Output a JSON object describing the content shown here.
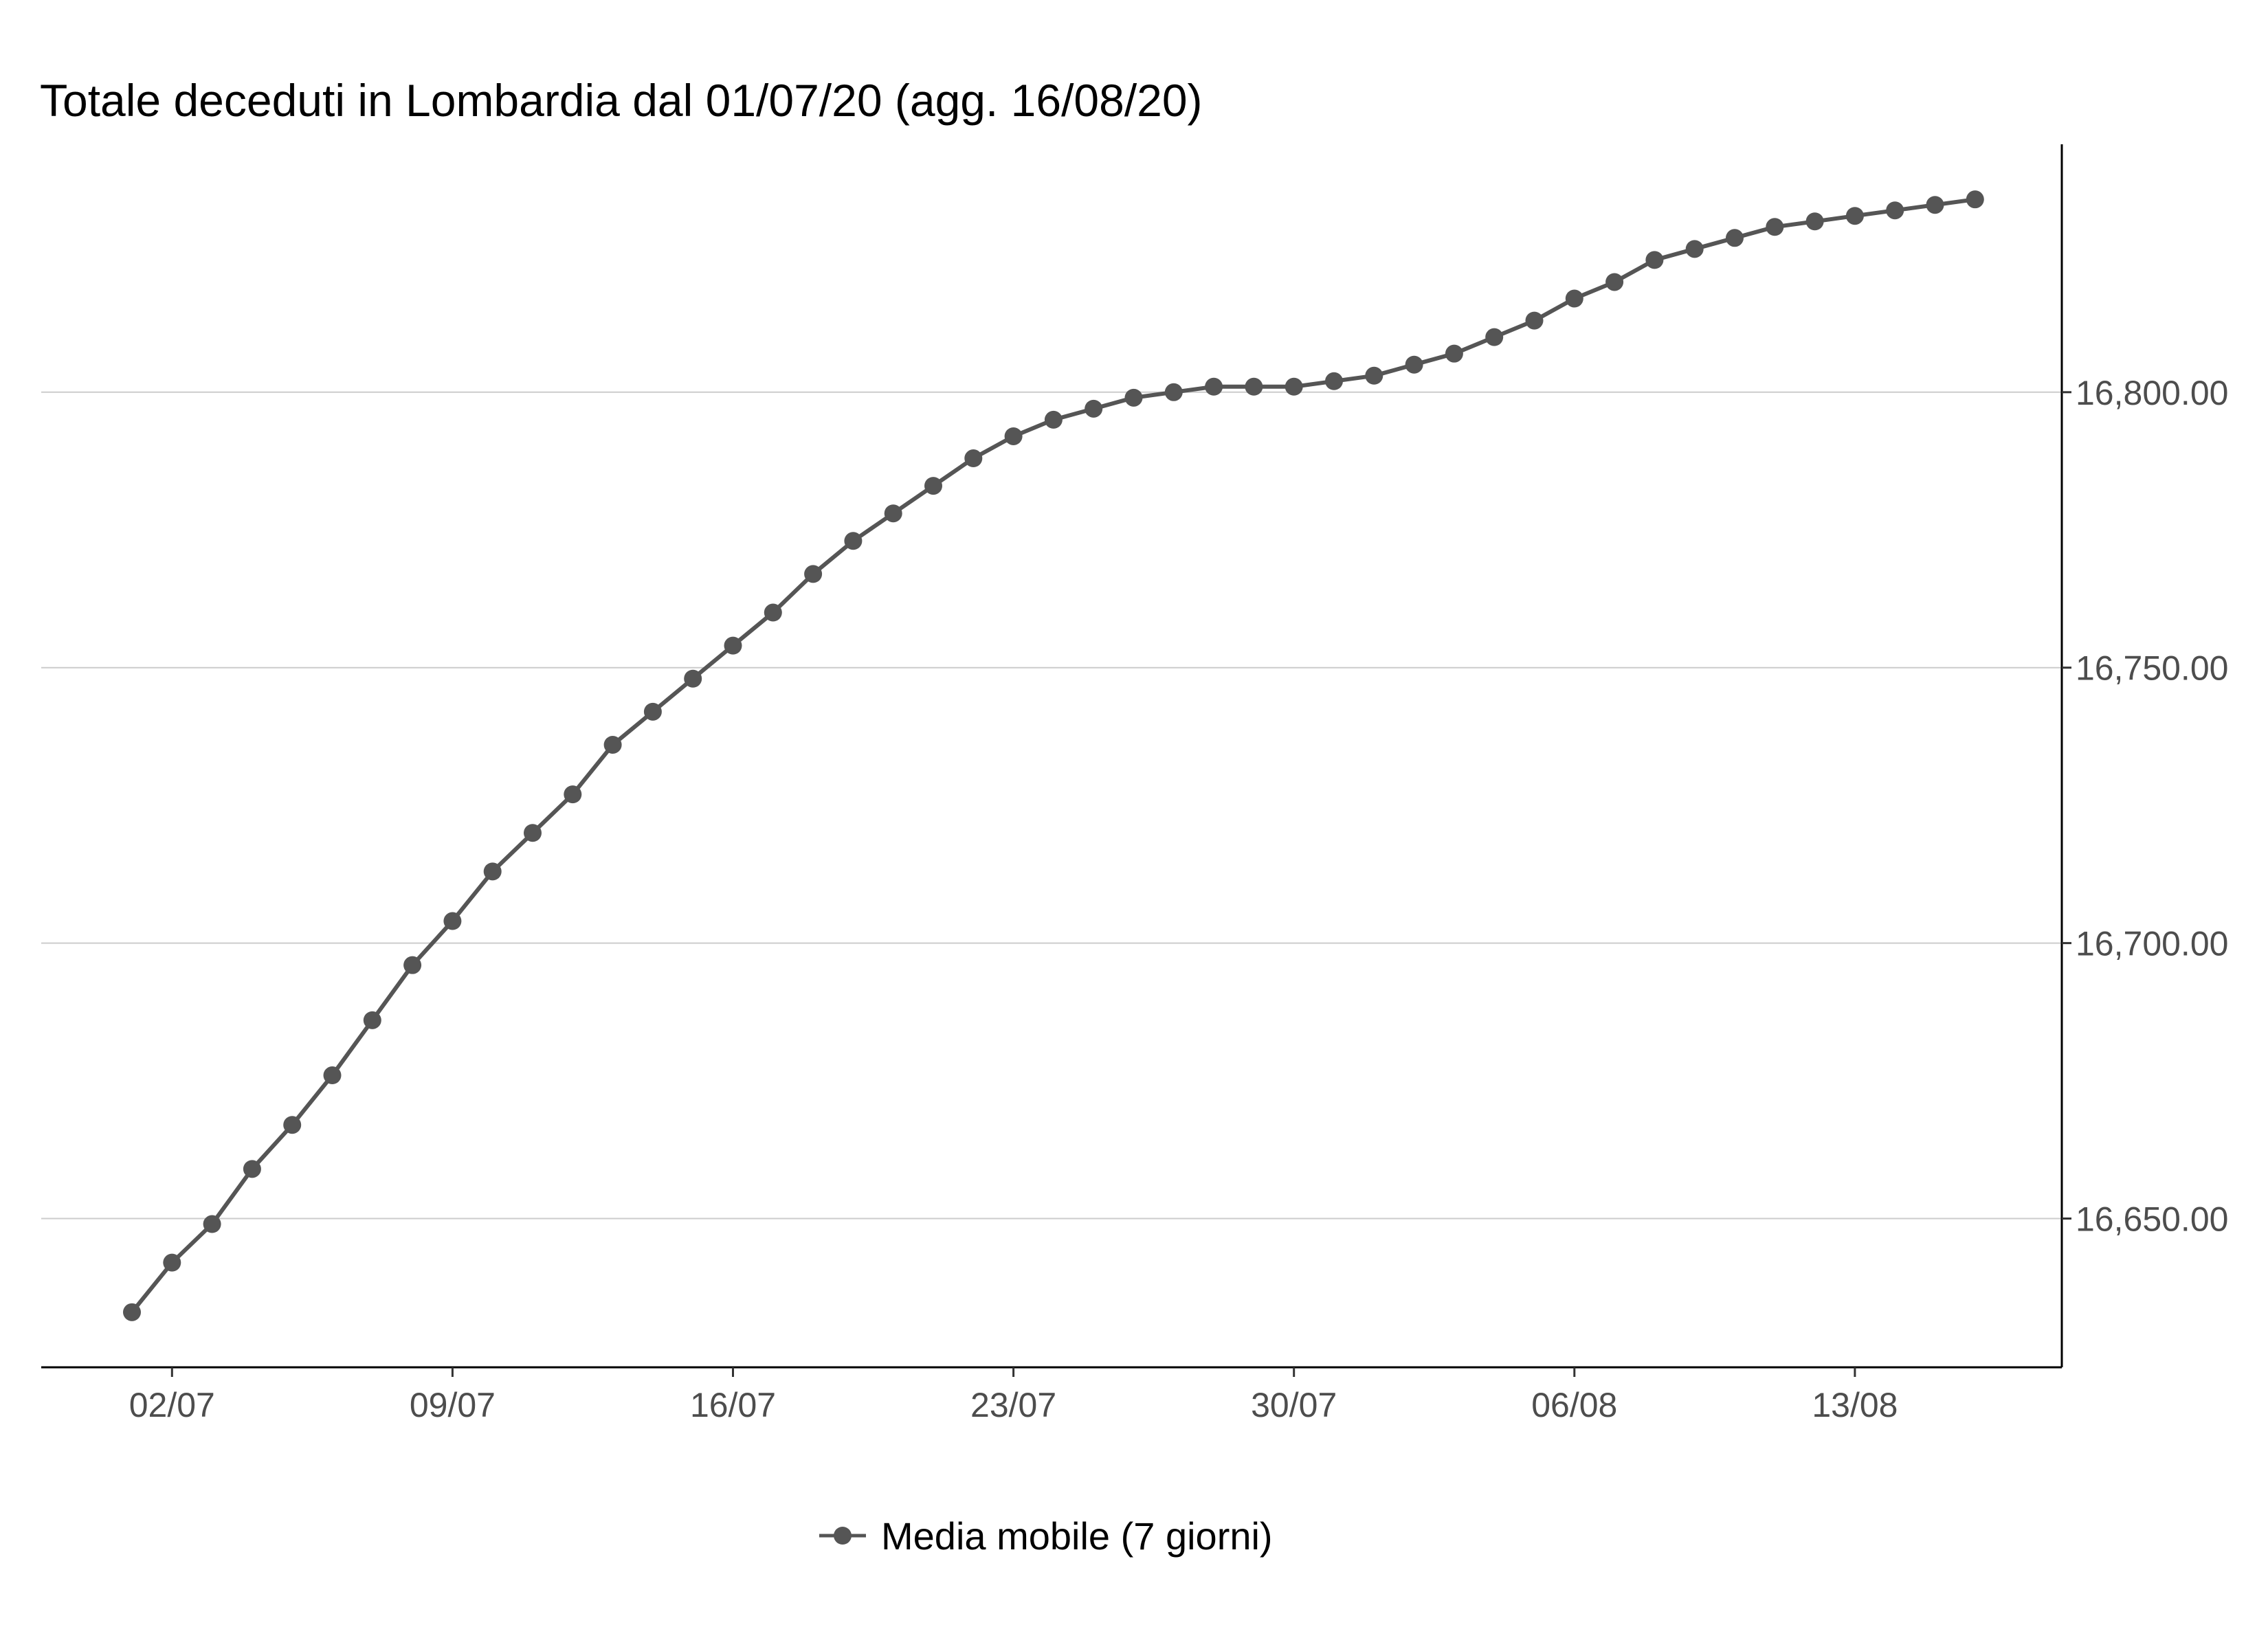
{
  "chart_data": {
    "type": "line",
    "title": "Totale deceduti in Lombardia dal 01/07/20 (agg. 16/08/20)",
    "xlabel": "",
    "ylabel": "",
    "x_ticks": [
      "02/07",
      "09/07",
      "16/07",
      "23/07",
      "30/07",
      "06/08",
      "13/08"
    ],
    "y_ticks": [
      "16,650.00",
      "16,700.00",
      "16,750.00",
      "16,800.00"
    ],
    "ylim": [
      16623,
      16845
    ],
    "y_axis_position": "right",
    "grid": "horizontal",
    "legend_position": "bottom",
    "series": [
      {
        "name": "Media mobile (7 giorni)",
        "color": "#555555",
        "x": [
          "01/07",
          "02/07",
          "03/07",
          "04/07",
          "05/07",
          "06/07",
          "07/07",
          "08/07",
          "09/07",
          "10/07",
          "11/07",
          "12/07",
          "13/07",
          "14/07",
          "15/07",
          "16/07",
          "17/07",
          "18/07",
          "19/07",
          "20/07",
          "21/07",
          "22/07",
          "23/07",
          "24/07",
          "25/07",
          "26/07",
          "27/07",
          "28/07",
          "29/07",
          "30/07",
          "31/07",
          "01/08",
          "02/08",
          "03/08",
          "04/08",
          "05/08",
          "06/08",
          "07/08",
          "08/08",
          "09/08",
          "10/08",
          "11/08",
          "12/08",
          "13/08",
          "14/08",
          "15/08",
          "16/08"
        ],
        "values": [
          16633,
          16642,
          16649,
          16659,
          16667,
          16676,
          16686,
          16696,
          16704,
          16713,
          16720,
          16727,
          16736,
          16742,
          16748,
          16754,
          16760,
          16767,
          16773,
          16778,
          16783,
          16788,
          16792,
          16795,
          16797,
          16799,
          16800,
          16801,
          16801,
          16801,
          16802,
          16803,
          16805,
          16807,
          16810,
          16813,
          16817,
          16820,
          16824,
          16826,
          16828,
          16830,
          16831,
          16832,
          16833,
          16834,
          16835
        ]
      }
    ]
  }
}
